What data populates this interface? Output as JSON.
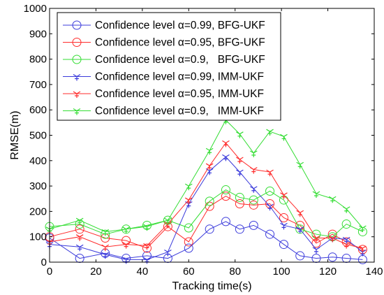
{
  "chart_data": {
    "type": "line",
    "xlabel": "Tracking time(s)",
    "ylabel": "RMSE(m)",
    "xlim": [
      0,
      140
    ],
    "ylim": [
      0,
      1000
    ],
    "xticks": [
      0,
      20,
      40,
      60,
      80,
      100,
      120,
      140
    ],
    "yticks": [
      0,
      100,
      200,
      300,
      400,
      500,
      600,
      700,
      800,
      900,
      1000
    ],
    "x_tick_labels": [
      "0",
      "20",
      "40",
      "60",
      "80",
      "100",
      "120",
      "140"
    ],
    "y_tick_labels": [
      "0",
      "100",
      "200",
      "300",
      "400",
      "500",
      "600",
      "700",
      "800",
      "900",
      "1000"
    ],
    "grid": false,
    "legend_position": "top-left",
    "series": [
      {
        "name": "Confidence level α=0.99, BFG-UKF",
        "color": "#3b3bdb",
        "marker": "circle",
        "x": [
          0,
          13,
          24,
          33,
          42,
          51,
          60,
          69,
          76,
          82,
          88,
          95,
          101,
          108,
          115,
          122,
          128,
          135
        ],
        "y": [
          95,
          15,
          35,
          15,
          25,
          15,
          55,
          130,
          160,
          130,
          145,
          110,
          70,
          25,
          15,
          20,
          15,
          10
        ]
      },
      {
        "name": "Confidence level α=0.95, BFG-UKF",
        "color": "#ff2b2b",
        "marker": "circle",
        "x": [
          0,
          13,
          24,
          33,
          42,
          51,
          60,
          69,
          76,
          82,
          88,
          95,
          101,
          108,
          115,
          122,
          128,
          135
        ],
        "y": [
          100,
          130,
          95,
          85,
          55,
          140,
          80,
          220,
          260,
          230,
          225,
          230,
          175,
          145,
          75,
          110,
          80,
          50
        ]
      },
      {
        "name": "Confidence level α=0.9,   BFG-UKF",
        "color": "#33dd33",
        "marker": "circle",
        "x": [
          0,
          13,
          24,
          33,
          42,
          51,
          60,
          69,
          76,
          82,
          88,
          95,
          101,
          108,
          115,
          122,
          128,
          135
        ],
        "y": [
          140,
          150,
          110,
          130,
          145,
          165,
          135,
          240,
          285,
          255,
          245,
          280,
          245,
          130,
          110,
          100,
          150,
          120
        ]
      },
      {
        "name": "Confidence level α=0.99, IMM-UKF",
        "color": "#3b3bdb",
        "marker": "tri-down",
        "x": [
          0,
          13,
          24,
          33,
          42,
          51,
          60,
          69,
          76,
          82,
          88,
          95,
          101,
          108,
          115,
          122,
          128,
          135
        ],
        "y": [
          70,
          60,
          30,
          10,
          10,
          40,
          230,
          360,
          415,
          355,
          290,
          220,
          145,
          130,
          50,
          95,
          90,
          40
        ]
      },
      {
        "name": "Confidence level α=0.95, IMM-UKF",
        "color": "#ff2b2b",
        "marker": "tri-down",
        "x": [
          0,
          13,
          24,
          33,
          42,
          51,
          60,
          69,
          76,
          82,
          88,
          95,
          101,
          108,
          115,
          122,
          128,
          135
        ],
        "y": [
          80,
          100,
          60,
          70,
          65,
          150,
          245,
          380,
          470,
          405,
          365,
          355,
          265,
          195,
          95,
          95,
          70,
          55
        ]
      },
      {
        "name": "Confidence level α=0.9,   IMM-UKF",
        "color": "#33dd33",
        "marker": "tri-down",
        "x": [
          0,
          13,
          24,
          33,
          42,
          51,
          60,
          69,
          76,
          82,
          88,
          95,
          101,
          108,
          115,
          122,
          128,
          135
        ],
        "y": [
          130,
          165,
          120,
          130,
          140,
          165,
          300,
          440,
          560,
          505,
          430,
          515,
          495,
          385,
          270,
          250,
          210,
          135
        ]
      }
    ]
  }
}
